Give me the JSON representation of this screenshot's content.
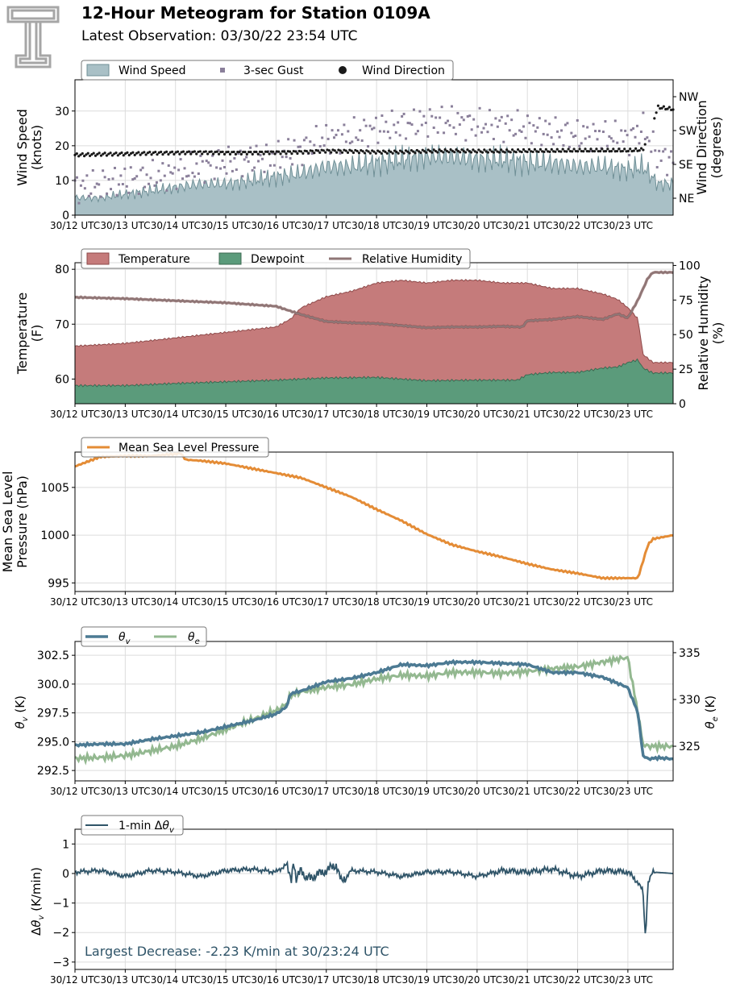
{
  "header": {
    "title": "12-Hour Meteogram for Station 0109A",
    "subtitle": "Latest Observation: 03/30/22 23:54 UTC"
  },
  "logo": {
    "icon": "double-t-logo-icon",
    "color": "#a6a6a6"
  },
  "colors": {
    "wind_fill": "#a9c0c6",
    "wind_line": "#6f8f96",
    "gust": "#8a7f9a",
    "direction": "#1a1a1a",
    "temperature": "#c57b7b",
    "temperature_edge": "#8e4a4a",
    "dewpoint": "#5b9b7b",
    "dewpoint_edge": "#3c6a52",
    "rh": "#8f7676",
    "pressure": "#e48c36",
    "theta_v": "#4c7a93",
    "theta_e": "#93b890",
    "dtheta": "#2f5468",
    "annotation": "#2f5468"
  },
  "time_ticks": [
    "30/12 UTC",
    "30/13 UTC",
    "30/14 UTC",
    "30/15 UTC",
    "30/16 UTC",
    "30/17 UTC",
    "30/18 UTC",
    "30/19 UTC",
    "30/20 UTC",
    "30/21 UTC",
    "30/22 UTC",
    "30/23 UTC"
  ],
  "chart_data": [
    {
      "type": "area",
      "title": "",
      "xlabel": "",
      "ylabel": "Wind Speed\n(knots)",
      "y2label": "Wind Direction\n(degrees)",
      "xlim": [
        0,
        11.9
      ],
      "ylim": [
        0,
        39
      ],
      "yticks": [
        "0",
        "10",
        "20",
        "30"
      ],
      "y2ticks": [
        "NE",
        "SE",
        "SW",
        "NW"
      ],
      "y2lim": [
        0,
        360
      ],
      "y2tick_values": [
        45,
        135,
        225,
        315
      ],
      "legend": [
        "Wind Speed",
        "3-sec Gust",
        "Wind Direction"
      ],
      "legend_position": "top-left",
      "grid": true,
      "series": [
        {
          "name": "Wind Speed",
          "x": [
            0,
            0.5,
            1,
            1.5,
            2,
            2.5,
            3,
            3.5,
            4,
            4.5,
            5,
            5.5,
            6,
            6.5,
            7,
            7.5,
            8,
            8.5,
            9,
            9.5,
            10,
            10.5,
            11,
            11.3,
            11.6,
            11.9
          ],
          "values": [
            5,
            5,
            6,
            7,
            8,
            9,
            9,
            10,
            11,
            12,
            14,
            14,
            15,
            16,
            17,
            17,
            16,
            16,
            15,
            15,
            14,
            14,
            13,
            14,
            9,
            9
          ]
        },
        {
          "name": "3-sec Gust",
          "x": [
            0,
            0.5,
            1,
            1.5,
            2,
            2.5,
            3,
            3.5,
            4,
            4.5,
            5,
            5.5,
            6,
            6.5,
            7,
            7.5,
            8,
            8.5,
            9,
            9.5,
            10,
            10.5,
            11,
            11.3,
            11.6,
            11.9
          ],
          "values": [
            8,
            9,
            10,
            11,
            12,
            14,
            15,
            16,
            17,
            19,
            22,
            23,
            25,
            26,
            27,
            27,
            26,
            26,
            25,
            24,
            23,
            23,
            22,
            25,
            17,
            16
          ]
        },
        {
          "name": "Wind Direction",
          "x": [
            0,
            0.5,
            1,
            1.5,
            2,
            2.5,
            3,
            3.5,
            4,
            4.5,
            5,
            5.5,
            6,
            6.5,
            7,
            7.5,
            8,
            8.5,
            9,
            9.5,
            10,
            10.5,
            11,
            11.3,
            11.6,
            11.9
          ],
          "values": [
            160,
            162,
            163,
            165,
            166,
            167,
            166,
            166,
            167,
            168,
            171,
            170,
            168,
            168,
            170,
            171,
            170,
            170,
            171,
            171,
            172,
            172,
            172,
            174,
            287,
            282
          ]
        }
      ]
    },
    {
      "type": "area",
      "title": "",
      "xlabel": "",
      "ylabel": "Temperature\n(F)",
      "y2label": "Relative Humidity\n(%)",
      "xlim": [
        0,
        11.9
      ],
      "ylim": [
        55.5,
        81.2
      ],
      "yticks": [
        60,
        70,
        80
      ],
      "y2lim": [
        0,
        102
      ],
      "y2ticks": [
        0,
        25,
        50,
        75,
        100
      ],
      "legend": [
        "Temperature",
        "Dewpoint",
        "Relative Humidity"
      ],
      "legend_position": "top-left",
      "grid": true,
      "series": [
        {
          "name": "Temperature",
          "x": [
            0,
            1,
            2,
            3,
            4,
            4.3,
            4.5,
            5,
            5.5,
            6,
            6.5,
            7,
            7.5,
            8,
            8.5,
            9,
            9.5,
            10,
            10.5,
            10.8,
            11,
            11.2,
            11.3,
            11.5,
            11.9
          ],
          "values": [
            66,
            66.5,
            67.5,
            68.5,
            69.5,
            71,
            73,
            75,
            76,
            77.5,
            78,
            77.5,
            78,
            78,
            77.5,
            77.5,
            76.5,
            76.5,
            75.5,
            74.5,
            73,
            71,
            64.5,
            63,
            63
          ]
        },
        {
          "name": "Dewpoint",
          "x": [
            0,
            1,
            2,
            3,
            4,
            5,
            6,
            7,
            8,
            8.8,
            9,
            9.5,
            10,
            10.5,
            10.8,
            11,
            11.2,
            11.3,
            11.5,
            11.9
          ],
          "values": [
            58.8,
            58.8,
            59.2,
            59.5,
            59.8,
            60.2,
            60.3,
            59.7,
            59.8,
            59.8,
            60.8,
            61.2,
            61.2,
            62,
            62.2,
            63,
            63.5,
            62,
            61.1,
            61.1
          ]
        },
        {
          "name": "Relative Humidity",
          "x": [
            0,
            1,
            2,
            3,
            4,
            4.5,
            5,
            5.5,
            6,
            6.5,
            7,
            7.5,
            8,
            8.5,
            8.9,
            9,
            9.5,
            10,
            10.5,
            10.8,
            11,
            11.2,
            11.4,
            11.5,
            11.9
          ],
          "values": [
            77,
            76,
            74.5,
            73,
            70.5,
            64.5,
            59.5,
            58.5,
            58,
            56.5,
            55,
            55.5,
            55.5,
            56,
            55.5,
            60,
            61,
            63,
            61,
            65,
            62,
            75,
            91,
            95,
            95
          ]
        }
      ]
    },
    {
      "type": "line",
      "title": "",
      "xlabel": "",
      "ylabel": "Mean Sea Level\nPressure (hPa)",
      "xlim": [
        0,
        11.9
      ],
      "ylim": [
        994.1,
        1008.7
      ],
      "yticks": [
        995,
        1000,
        1005
      ],
      "legend": [
        "Mean Sea Level Pressure"
      ],
      "legend_position": "top-left",
      "grid": true,
      "series": [
        {
          "name": "Mean Sea Level Pressure",
          "x": [
            0,
            0.5,
            1,
            1.5,
            2,
            2.1,
            2.2,
            2.5,
            3,
            3.5,
            4,
            4.5,
            5,
            5.5,
            6,
            6.5,
            7,
            7.5,
            8,
            8.5,
            9,
            9.5,
            10,
            10.5,
            11,
            11.2,
            11.4,
            11.5,
            11.9
          ],
          "values": [
            1007.2,
            1008.2,
            1008.3,
            1008.3,
            1008.5,
            1008.6,
            1007.9,
            1007.8,
            1007.5,
            1007,
            1006.5,
            1006,
            1005,
            1004,
            1002.7,
            1001.5,
            1000.1,
            999,
            998.3,
            997.7,
            997,
            996.4,
            996,
            995.5,
            995.5,
            995.5,
            999,
            999.6,
            1000
          ]
        }
      ]
    },
    {
      "type": "line",
      "title": "",
      "xlabel": "",
      "ylabel": "θv (K)",
      "y2label": "θe (K)",
      "xlim": [
        0,
        11.9
      ],
      "ylim": [
        291.6,
        303.7
      ],
      "yticks": [
        "292.5",
        "295.0",
        "297.5",
        "300.0",
        "302.5"
      ],
      "y2lim": [
        321.3,
        336.2
      ],
      "y2ticks": [
        325,
        330,
        335
      ],
      "legend": [
        "θv",
        "θe"
      ],
      "legend_position": "top-left",
      "grid": true,
      "series": [
        {
          "name": "θv",
          "axis": "left",
          "x": [
            0,
            0.5,
            1,
            1.5,
            2,
            2.5,
            3,
            3.5,
            4,
            4.2,
            4.3,
            4.5,
            5,
            5.5,
            6,
            6.5,
            7,
            7.5,
            8,
            8.5,
            9,
            9.5,
            10,
            10.5,
            11,
            11.2,
            11.3,
            11.4,
            11.6,
            11.9
          ],
          "values": [
            294.7,
            294.8,
            294.8,
            295.2,
            295.5,
            295.8,
            296.3,
            296.8,
            297.4,
            298,
            299.2,
            299.4,
            300.2,
            300.5,
            301,
            301.7,
            301.6,
            301.9,
            301.9,
            301.8,
            301.7,
            301,
            301,
            300.6,
            299.7,
            297.5,
            293.8,
            293.5,
            293.6,
            293.5
          ]
        },
        {
          "name": "θe",
          "axis": "right",
          "x": [
            0,
            0.5,
            1,
            1.5,
            2,
            2.5,
            3,
            3.5,
            4,
            4.2,
            4.3,
            4.5,
            5,
            5.5,
            6,
            6.5,
            7,
            7.5,
            8,
            8.5,
            9,
            9.5,
            10,
            10.5,
            11,
            11.2,
            11.3,
            11.4,
            11.6,
            11.9
          ],
          "values": [
            323.7,
            323.8,
            324,
            324.5,
            325,
            325.8,
            326.8,
            327.8,
            328.8,
            329.5,
            330.5,
            330.8,
            331.3,
            331.6,
            332.2,
            332.6,
            332.5,
            332.9,
            332.9,
            332.8,
            333,
            333.3,
            333.5,
            334,
            334.5,
            328.5,
            325.2,
            325,
            325,
            325
          ]
        }
      ]
    },
    {
      "type": "line",
      "title": "",
      "xlabel": "",
      "ylabel": "Δθv (K/min)",
      "xlim": [
        0,
        11.9
      ],
      "ylim": [
        -3.25,
        1.5
      ],
      "yticks": [
        "−3",
        "−2",
        "−1",
        "0",
        "1"
      ],
      "legend": [
        "1-min Δθv"
      ],
      "legend_position": "top-left",
      "grid": true,
      "annotation": "Largest Decrease: -2.23 K/min at 30/23:24 UTC",
      "series": [
        {
          "name": "1-min Δθv",
          "x": [
            0,
            0.5,
            1,
            1.5,
            2,
            2.5,
            3,
            3.5,
            4,
            4.2,
            4.3,
            4.35,
            4.4,
            4.5,
            4.6,
            5,
            5.2,
            5.3,
            5.5,
            6,
            6.5,
            7,
            7.5,
            8,
            8.5,
            9,
            9.5,
            10,
            10.5,
            11,
            11.2,
            11.3,
            11.35,
            11.4,
            11.5,
            11.9
          ],
          "values": [
            0.05,
            0.1,
            -0.1,
            0.1,
            0.05,
            -0.1,
            0.1,
            0.15,
            0.05,
            0.3,
            -0.2,
            0.5,
            -0.3,
            0.2,
            -0.2,
            0.1,
            0.3,
            -0.3,
            0.1,
            0.05,
            -0.1,
            0.05,
            0.05,
            -0.1,
            0.1,
            0.05,
            0.15,
            -0.1,
            0.1,
            0.05,
            -0.3,
            -0.6,
            -2.23,
            -0.3,
            0.05,
            0
          ]
        }
      ]
    }
  ]
}
